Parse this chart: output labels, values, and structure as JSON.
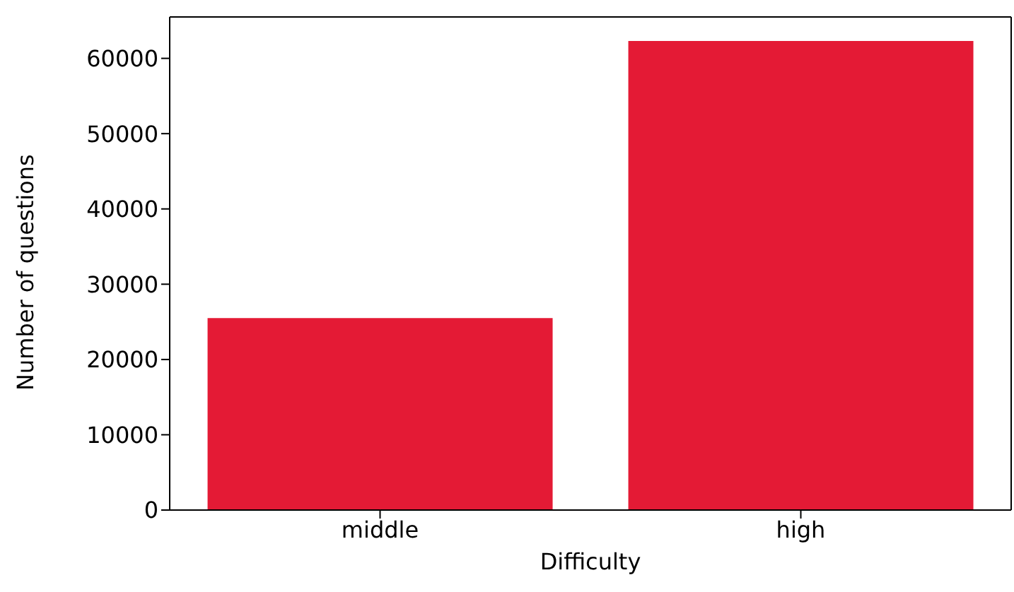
{
  "chart_data": {
    "type": "bar",
    "xlabel": "Difficulty",
    "ylabel": "Number of questions",
    "categories": [
      "middle",
      "high"
    ],
    "values": [
      25500,
      62300
    ],
    "color": "#e41a35",
    "ylim": [
      0,
      65500
    ],
    "yticks": [
      0,
      10000,
      20000,
      30000,
      40000,
      50000,
      60000
    ],
    "grid": false,
    "legend": false
  }
}
